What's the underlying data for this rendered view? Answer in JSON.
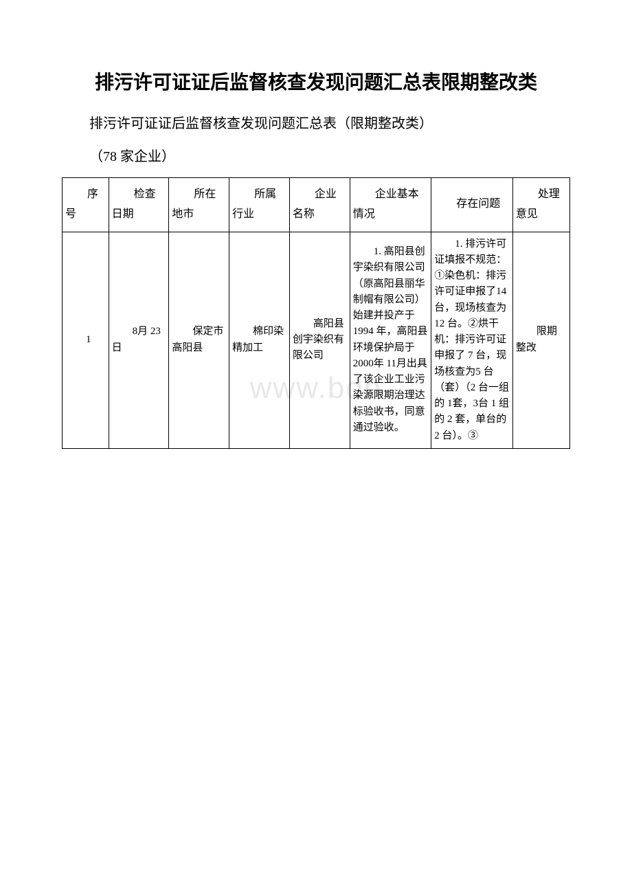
{
  "title": "排污许可证证后监督核查发现问题汇总表限期整改类",
  "subtitle": "排污许可证证后监督核查发现问题汇总表（限期整改类）",
  "count": "（78 家企业）",
  "watermark": "www.bdo",
  "table": {
    "headers": {
      "idx": "序号",
      "date": "检查日期",
      "city": "所在地市",
      "industry": "所属行业",
      "company": "企业名称",
      "basic": "企业基本情况",
      "problem": "存在问题",
      "opinion": "处理意见"
    },
    "rows": [
      {
        "idx": "1",
        "date": "8月 23日",
        "city": "保定市\n高阳县",
        "industry": "棉印染精加工",
        "company": "高阳县创宇染织有限公司",
        "basic": "1. 高阳县创宇染织有限公司（原高阳县丽华制帽有限公司）始建并投产于1994 年，高阳县环境保护局于2000年 11月出具了该企业工业污染源限期治理达标验收书，同意通过验收。",
        "problem": "1. 排污许可证填报不规范：①染色机：排污许可证申报了14 台，现场核查为12 台。②烘干机：排污许可证申报了 7 台，现场核查为5 台（套）（2 台一组的 1套，3台 1 组的 2 套，单台的 2 台）。③",
        "opinion": "限期整改"
      }
    ]
  }
}
